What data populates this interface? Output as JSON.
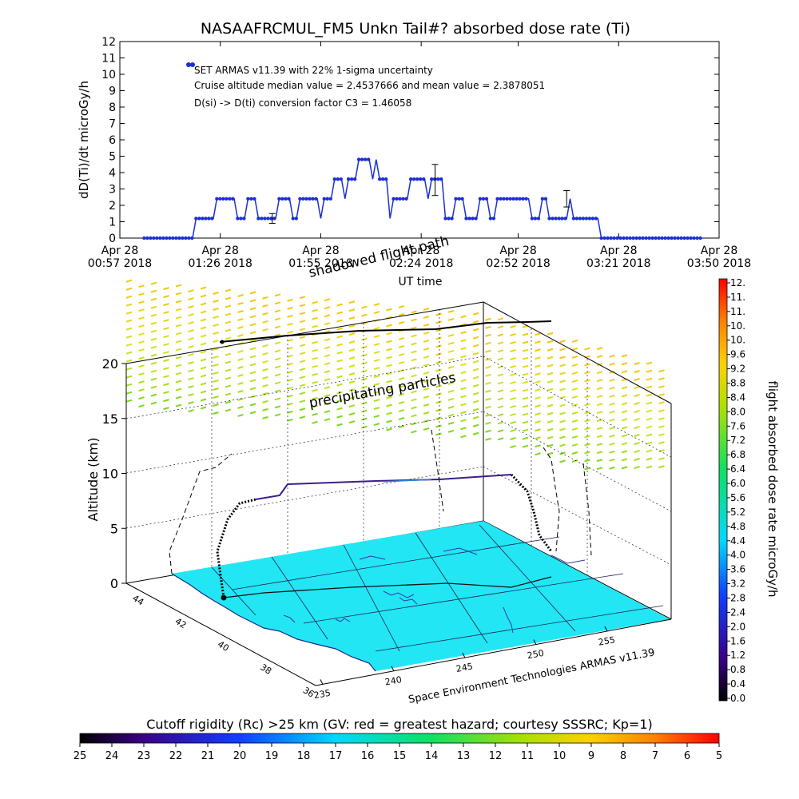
{
  "title": "NASAAFRCMUL_FM5 Unkn Tail#? absorbed dose rate (Ti)",
  "chart_data": [
    {
      "type": "line",
      "ylabel": "dD(Ti)/dt microGy/h",
      "xlabel": "UT time",
      "ylim": [
        0,
        12
      ],
      "yticks": [
        "0",
        "1",
        "2",
        "3",
        "4",
        "5",
        "6",
        "7",
        "8",
        "9",
        "10",
        "11",
        "12"
      ],
      "xticks": [
        {
          "t": "00:57",
          "l1": "Apr 28",
          "l2": "00:57 2018"
        },
        {
          "t": "01:26",
          "l1": "Apr 28",
          "l2": "01:26 2018"
        },
        {
          "t": "01:55",
          "l1": "Apr 28",
          "l2": "01:55 2018"
        },
        {
          "t": "02:24",
          "l1": "Apr 28",
          "l2": "02:24 2018"
        },
        {
          "t": "02:52",
          "l1": "Apr 28",
          "l2": "02:52 2018"
        },
        {
          "t": "03:21",
          "l1": "Apr 28",
          "l2": "03:21 2018"
        },
        {
          "t": "03:50",
          "l1": "Apr 28",
          "l2": "03:50 2018"
        }
      ],
      "legend": {
        "line1": "SET ARMAS v11.39 with 22% 1-sigma uncertainty",
        "line2": "Cruise altitude median value = 2.4537666 and mean value = 2.3878051",
        "line3": "D(si) -> D(ti) conversion factor C3 = 1.46058"
      },
      "series_color": "#1a2fd6",
      "series": [
        {
          "x": "01:04",
          "y": 0
        },
        {
          "x": "01:18",
          "y": 0
        },
        {
          "x": "01:19",
          "y": 1.2
        },
        {
          "x": "01:24",
          "y": 1.2
        },
        {
          "x": "01:25",
          "y": 2.4
        },
        {
          "x": "01:30",
          "y": 2.4
        },
        {
          "x": "01:31",
          "y": 1.2
        },
        {
          "x": "01:33",
          "y": 1.2
        },
        {
          "x": "01:34",
          "y": 2.4
        },
        {
          "x": "01:36",
          "y": 2.4
        },
        {
          "x": "01:37",
          "y": 1.2
        },
        {
          "x": "01:42",
          "y": 1.2
        },
        {
          "x": "01:43",
          "y": 2.4
        },
        {
          "x": "01:46",
          "y": 2.4
        },
        {
          "x": "01:47",
          "y": 1.2
        },
        {
          "x": "01:48",
          "y": 1.2
        },
        {
          "x": "01:49",
          "y": 2.4
        },
        {
          "x": "01:54",
          "y": 2.4
        },
        {
          "x": "01:55",
          "y": 1.2
        },
        {
          "x": "01:56",
          "y": 2.4
        },
        {
          "x": "01:58",
          "y": 2.4
        },
        {
          "x": "01:59",
          "y": 3.6
        },
        {
          "x": "02:01",
          "y": 3.6
        },
        {
          "x": "02:02",
          "y": 2.4
        },
        {
          "x": "02:03",
          "y": 3.6
        },
        {
          "x": "02:05",
          "y": 3.6
        },
        {
          "x": "02:06",
          "y": 4.8
        },
        {
          "x": "02:09",
          "y": 4.8
        },
        {
          "x": "02:10",
          "y": 3.6
        },
        {
          "x": "02:11",
          "y": 4.8
        },
        {
          "x": "02:12",
          "y": 3.6
        },
        {
          "x": "02:14",
          "y": 3.6
        },
        {
          "x": "02:15",
          "y": 1.2
        },
        {
          "x": "02:16",
          "y": 2.4
        },
        {
          "x": "02:20",
          "y": 2.4
        },
        {
          "x": "02:21",
          "y": 3.6
        },
        {
          "x": "02:25",
          "y": 3.6
        },
        {
          "x": "02:26",
          "y": 2.4
        },
        {
          "x": "02:27",
          "y": 3.6
        },
        {
          "x": "02:30",
          "y": 3.6
        },
        {
          "x": "02:31",
          "y": 1.2
        },
        {
          "x": "02:33",
          "y": 1.2
        },
        {
          "x": "02:34",
          "y": 2.4
        },
        {
          "x": "02:36",
          "y": 2.4
        },
        {
          "x": "02:37",
          "y": 1.2
        },
        {
          "x": "02:40",
          "y": 1.2
        },
        {
          "x": "02:41",
          "y": 2.4
        },
        {
          "x": "02:43",
          "y": 2.4
        },
        {
          "x": "02:44",
          "y": 1.2
        },
        {
          "x": "02:45",
          "y": 1.2
        },
        {
          "x": "02:46",
          "y": 2.4
        },
        {
          "x": "02:55",
          "y": 2.4
        },
        {
          "x": "02:56",
          "y": 1.2
        },
        {
          "x": "02:58",
          "y": 1.2
        },
        {
          "x": "02:59",
          "y": 2.4
        },
        {
          "x": "03:00",
          "y": 2.4
        },
        {
          "x": "03:01",
          "y": 1.2
        },
        {
          "x": "03:06",
          "y": 1.2
        },
        {
          "x": "03:07",
          "y": 2.4
        },
        {
          "x": "03:08",
          "y": 1.2
        },
        {
          "x": "03:15",
          "y": 1.2
        },
        {
          "x": "03:16",
          "y": 0
        },
        {
          "x": "03:45",
          "y": 0
        }
      ],
      "error_bars": [
        {
          "x": "01:41",
          "y": 1.2,
          "lo": 0.9,
          "hi": 1.5
        },
        {
          "x": "02:28",
          "y": 3.6,
          "lo": 2.6,
          "hi": 4.5
        },
        {
          "x": "03:06",
          "y": 2.4,
          "lo": 1.9,
          "hi": 2.9
        }
      ]
    },
    {
      "type": "scatter",
      "zlabel": "Altitude (km)",
      "zticks": [
        "0",
        "5",
        "10",
        "15",
        "20"
      ],
      "lat_ticks": [
        "44",
        "42",
        "40",
        "38",
        "36"
      ],
      "lon_ticks": [
        "235",
        "240",
        "245",
        "250",
        "255"
      ],
      "credit": "Space Environment Technologies ARMAS v11.39",
      "annotation_shadow": "shadowed flight path",
      "annotation_particles": "precipitating particles",
      "colorbar_label": "flight absorbed dose rate microGy/h",
      "colorbar_ticks": [
        "12.",
        "11.",
        "11.",
        "10.",
        "10.",
        "9.6",
        "9.2",
        "8.8",
        "8.4",
        "8.0",
        "7.6",
        "7.2",
        "6.8",
        "6.4",
        "6.0",
        "5.6",
        "5.2",
        "4.8",
        "4.4",
        "4.0",
        "3.6",
        "3.2",
        "2.8",
        "2.4",
        "2.0",
        "1.6",
        "1.2",
        "0.8",
        "0.4",
        "0.0"
      ],
      "ground_color": "#22e6f4",
      "flight_color": "#3b1d8f"
    }
  ],
  "bottom_colorbar": {
    "title": "Cutoff rigidity (Rc) >25 km (GV: red = greatest hazard; courtesy SSSRC; Kp=1)",
    "ticks": [
      "25",
      "24",
      "23",
      "22",
      "21",
      "20",
      "19",
      "18",
      "17",
      "16",
      "15",
      "14",
      "13",
      "12",
      "11",
      "10",
      "9",
      "8",
      "7",
      "6",
      "5"
    ]
  }
}
